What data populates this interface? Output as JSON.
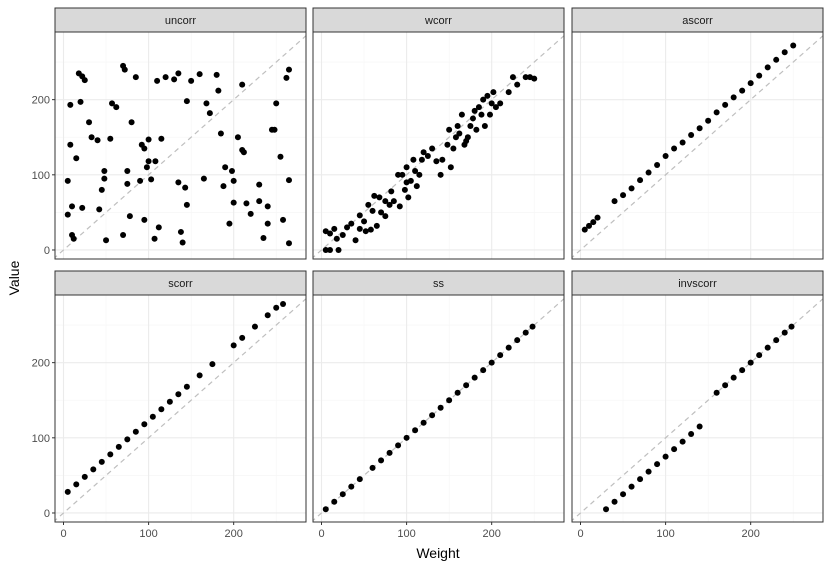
{
  "chart_data": {
    "type": "scatter",
    "facet_layout": "3 columns x 2 rows, shared axes",
    "xlabel": "Weight",
    "ylabel": "Value",
    "xlim": [
      -10,
      285
    ],
    "ylim": [
      -12,
      290
    ],
    "x_ticks": [
      0,
      100,
      200
    ],
    "y_ticks": [
      0,
      100,
      200
    ],
    "reference_line": "y = x (dashed grey)",
    "grid": true,
    "colors": {
      "points": "#000000",
      "reference_line": "#bfbfbf",
      "strip_fill": "#d9d9d9",
      "panel_border": "#333333",
      "grid_major": "#ebebeb",
      "grid_minor": "#f5f5f5"
    },
    "panels": [
      {
        "title": "uncorr",
        "points": [
          [
            5,
            47
          ],
          [
            5,
            92
          ],
          [
            8,
            140
          ],
          [
            8,
            193
          ],
          [
            10,
            58
          ],
          [
            10,
            20
          ],
          [
            12,
            15
          ],
          [
            15,
            122
          ],
          [
            18,
            235
          ],
          [
            20,
            197
          ],
          [
            22,
            56
          ],
          [
            22,
            231
          ],
          [
            25,
            226
          ],
          [
            30,
            170
          ],
          [
            33,
            150
          ],
          [
            40,
            146
          ],
          [
            42,
            54
          ],
          [
            45,
            80
          ],
          [
            48,
            105
          ],
          [
            48,
            95
          ],
          [
            50,
            13
          ],
          [
            55,
            148
          ],
          [
            57,
            195
          ],
          [
            62,
            190
          ],
          [
            70,
            20
          ],
          [
            70,
            245
          ],
          [
            72,
            240
          ],
          [
            75,
            105
          ],
          [
            75,
            88
          ],
          [
            78,
            45
          ],
          [
            80,
            170
          ],
          [
            85,
            230
          ],
          [
            90,
            92
          ],
          [
            92,
            140
          ],
          [
            95,
            40
          ],
          [
            95,
            135
          ],
          [
            98,
            110
          ],
          [
            100,
            147
          ],
          [
            100,
            118
          ],
          [
            103,
            94
          ],
          [
            107,
            15
          ],
          [
            108,
            118
          ],
          [
            110,
            225
          ],
          [
            112,
            30
          ],
          [
            115,
            148
          ],
          [
            120,
            230
          ],
          [
            130,
            227
          ],
          [
            135,
            90
          ],
          [
            135,
            235
          ],
          [
            138,
            24
          ],
          [
            140,
            10
          ],
          [
            143,
            83
          ],
          [
            145,
            60
          ],
          [
            145,
            198
          ],
          [
            150,
            225
          ],
          [
            160,
            234
          ],
          [
            165,
            95
          ],
          [
            168,
            195
          ],
          [
            172,
            182
          ],
          [
            180,
            233
          ],
          [
            182,
            212
          ],
          [
            185,
            155
          ],
          [
            188,
            85
          ],
          [
            190,
            110
          ],
          [
            195,
            35
          ],
          [
            198,
            105
          ],
          [
            200,
            92
          ],
          [
            200,
            63
          ],
          [
            205,
            150
          ],
          [
            210,
            220
          ],
          [
            210,
            133
          ],
          [
            212,
            130
          ],
          [
            215,
            62
          ],
          [
            220,
            48
          ],
          [
            230,
            65
          ],
          [
            230,
            87
          ],
          [
            235,
            16
          ],
          [
            240,
            35
          ],
          [
            240,
            58
          ],
          [
            245,
            160
          ],
          [
            248,
            160
          ],
          [
            250,
            195
          ],
          [
            255,
            124
          ],
          [
            258,
            40
          ],
          [
            262,
            229
          ],
          [
            265,
            240
          ],
          [
            265,
            93
          ],
          [
            265,
            9
          ]
        ]
      },
      {
        "title": "wcorr",
        "points": [
          [
            5,
            0
          ],
          [
            5,
            25
          ],
          [
            10,
            0
          ],
          [
            10,
            22
          ],
          [
            15,
            28
          ],
          [
            18,
            15
          ],
          [
            20,
            0
          ],
          [
            25,
            20
          ],
          [
            30,
            30
          ],
          [
            35,
            35
          ],
          [
            40,
            13
          ],
          [
            45,
            28
          ],
          [
            45,
            46
          ],
          [
            50,
            38
          ],
          [
            52,
            25
          ],
          [
            55,
            60
          ],
          [
            58,
            27
          ],
          [
            60,
            52
          ],
          [
            62,
            72
          ],
          [
            65,
            32
          ],
          [
            68,
            70
          ],
          [
            70,
            50
          ],
          [
            75,
            65
          ],
          [
            75,
            45
          ],
          [
            80,
            60
          ],
          [
            82,
            78
          ],
          [
            85,
            65
          ],
          [
            90,
            100
          ],
          [
            92,
            58
          ],
          [
            95,
            100
          ],
          [
            98,
            80
          ],
          [
            100,
            90
          ],
          [
            100,
            110
          ],
          [
            102,
            70
          ],
          [
            105,
            92
          ],
          [
            108,
            120
          ],
          [
            110,
            105
          ],
          [
            112,
            85
          ],
          [
            115,
            100
          ],
          [
            118,
            120
          ],
          [
            120,
            130
          ],
          [
            125,
            125
          ],
          [
            130,
            135
          ],
          [
            135,
            118
          ],
          [
            140,
            100
          ],
          [
            142,
            120
          ],
          [
            148,
            140
          ],
          [
            150,
            160
          ],
          [
            152,
            110
          ],
          [
            155,
            135
          ],
          [
            158,
            150
          ],
          [
            160,
            165
          ],
          [
            162,
            155
          ],
          [
            165,
            180
          ],
          [
            168,
            140
          ],
          [
            170,
            145
          ],
          [
            172,
            150
          ],
          [
            175,
            165
          ],
          [
            178,
            175
          ],
          [
            180,
            185
          ],
          [
            182,
            160
          ],
          [
            185,
            190
          ],
          [
            188,
            180
          ],
          [
            190,
            200
          ],
          [
            192,
            165
          ],
          [
            195,
            205
          ],
          [
            198,
            180
          ],
          [
            200,
            195
          ],
          [
            202,
            210
          ],
          [
            205,
            190
          ],
          [
            210,
            195
          ],
          [
            220,
            210
          ],
          [
            225,
            230
          ],
          [
            230,
            220
          ],
          [
            240,
            230
          ],
          [
            245,
            230
          ],
          [
            250,
            228
          ]
        ]
      },
      {
        "title": "ascorr",
        "points": [
          [
            5,
            27
          ],
          [
            10,
            32
          ],
          [
            15,
            37
          ],
          [
            20,
            43
          ],
          [
            40,
            65
          ],
          [
            50,
            73
          ],
          [
            60,
            82
          ],
          [
            70,
            93
          ],
          [
            80,
            103
          ],
          [
            90,
            113
          ],
          [
            100,
            125
          ],
          [
            110,
            135
          ],
          [
            120,
            143
          ],
          [
            130,
            153
          ],
          [
            140,
            162
          ],
          [
            150,
            172
          ],
          [
            160,
            183
          ],
          [
            170,
            193
          ],
          [
            180,
            203
          ],
          [
            190,
            212
          ],
          [
            200,
            222
          ],
          [
            210,
            232
          ],
          [
            220,
            243
          ],
          [
            230,
            253
          ],
          [
            240,
            263
          ],
          [
            250,
            272
          ]
        ]
      },
      {
        "title": "scorr",
        "points": [
          [
            5,
            28
          ],
          [
            15,
            38
          ],
          [
            25,
            48
          ],
          [
            35,
            58
          ],
          [
            45,
            68
          ],
          [
            55,
            78
          ],
          [
            65,
            88
          ],
          [
            75,
            98
          ],
          [
            85,
            108
          ],
          [
            95,
            118
          ],
          [
            105,
            128
          ],
          [
            115,
            138
          ],
          [
            125,
            148
          ],
          [
            135,
            158
          ],
          [
            145,
            168
          ],
          [
            160,
            183
          ],
          [
            175,
            198
          ],
          [
            200,
            223
          ],
          [
            210,
            233
          ],
          [
            225,
            248
          ],
          [
            240,
            263
          ],
          [
            250,
            273
          ],
          [
            258,
            278
          ]
        ]
      },
      {
        "title": "ss",
        "points": [
          [
            5,
            5
          ],
          [
            15,
            15
          ],
          [
            25,
            25
          ],
          [
            35,
            35
          ],
          [
            45,
            45
          ],
          [
            60,
            60
          ],
          [
            70,
            70
          ],
          [
            80,
            80
          ],
          [
            90,
            90
          ],
          [
            100,
            100
          ],
          [
            110,
            110
          ],
          [
            120,
            120
          ],
          [
            130,
            130
          ],
          [
            140,
            140
          ],
          [
            150,
            150
          ],
          [
            160,
            160
          ],
          [
            170,
            170
          ],
          [
            180,
            180
          ],
          [
            190,
            190
          ],
          [
            200,
            200
          ],
          [
            210,
            210
          ],
          [
            220,
            220
          ],
          [
            230,
            230
          ],
          [
            240,
            240
          ],
          [
            248,
            248
          ]
        ]
      },
      {
        "title": "invscorr",
        "points": [
          [
            30,
            5
          ],
          [
            40,
            15
          ],
          [
            50,
            25
          ],
          [
            60,
            35
          ],
          [
            70,
            45
          ],
          [
            80,
            55
          ],
          [
            90,
            65
          ],
          [
            100,
            75
          ],
          [
            110,
            85
          ],
          [
            120,
            95
          ],
          [
            130,
            105
          ],
          [
            140,
            115
          ],
          [
            160,
            160
          ],
          [
            170,
            170
          ],
          [
            180,
            180
          ],
          [
            190,
            190
          ],
          [
            200,
            200
          ],
          [
            210,
            210
          ],
          [
            220,
            220
          ],
          [
            230,
            230
          ],
          [
            240,
            240
          ],
          [
            248,
            248
          ]
        ]
      }
    ]
  }
}
